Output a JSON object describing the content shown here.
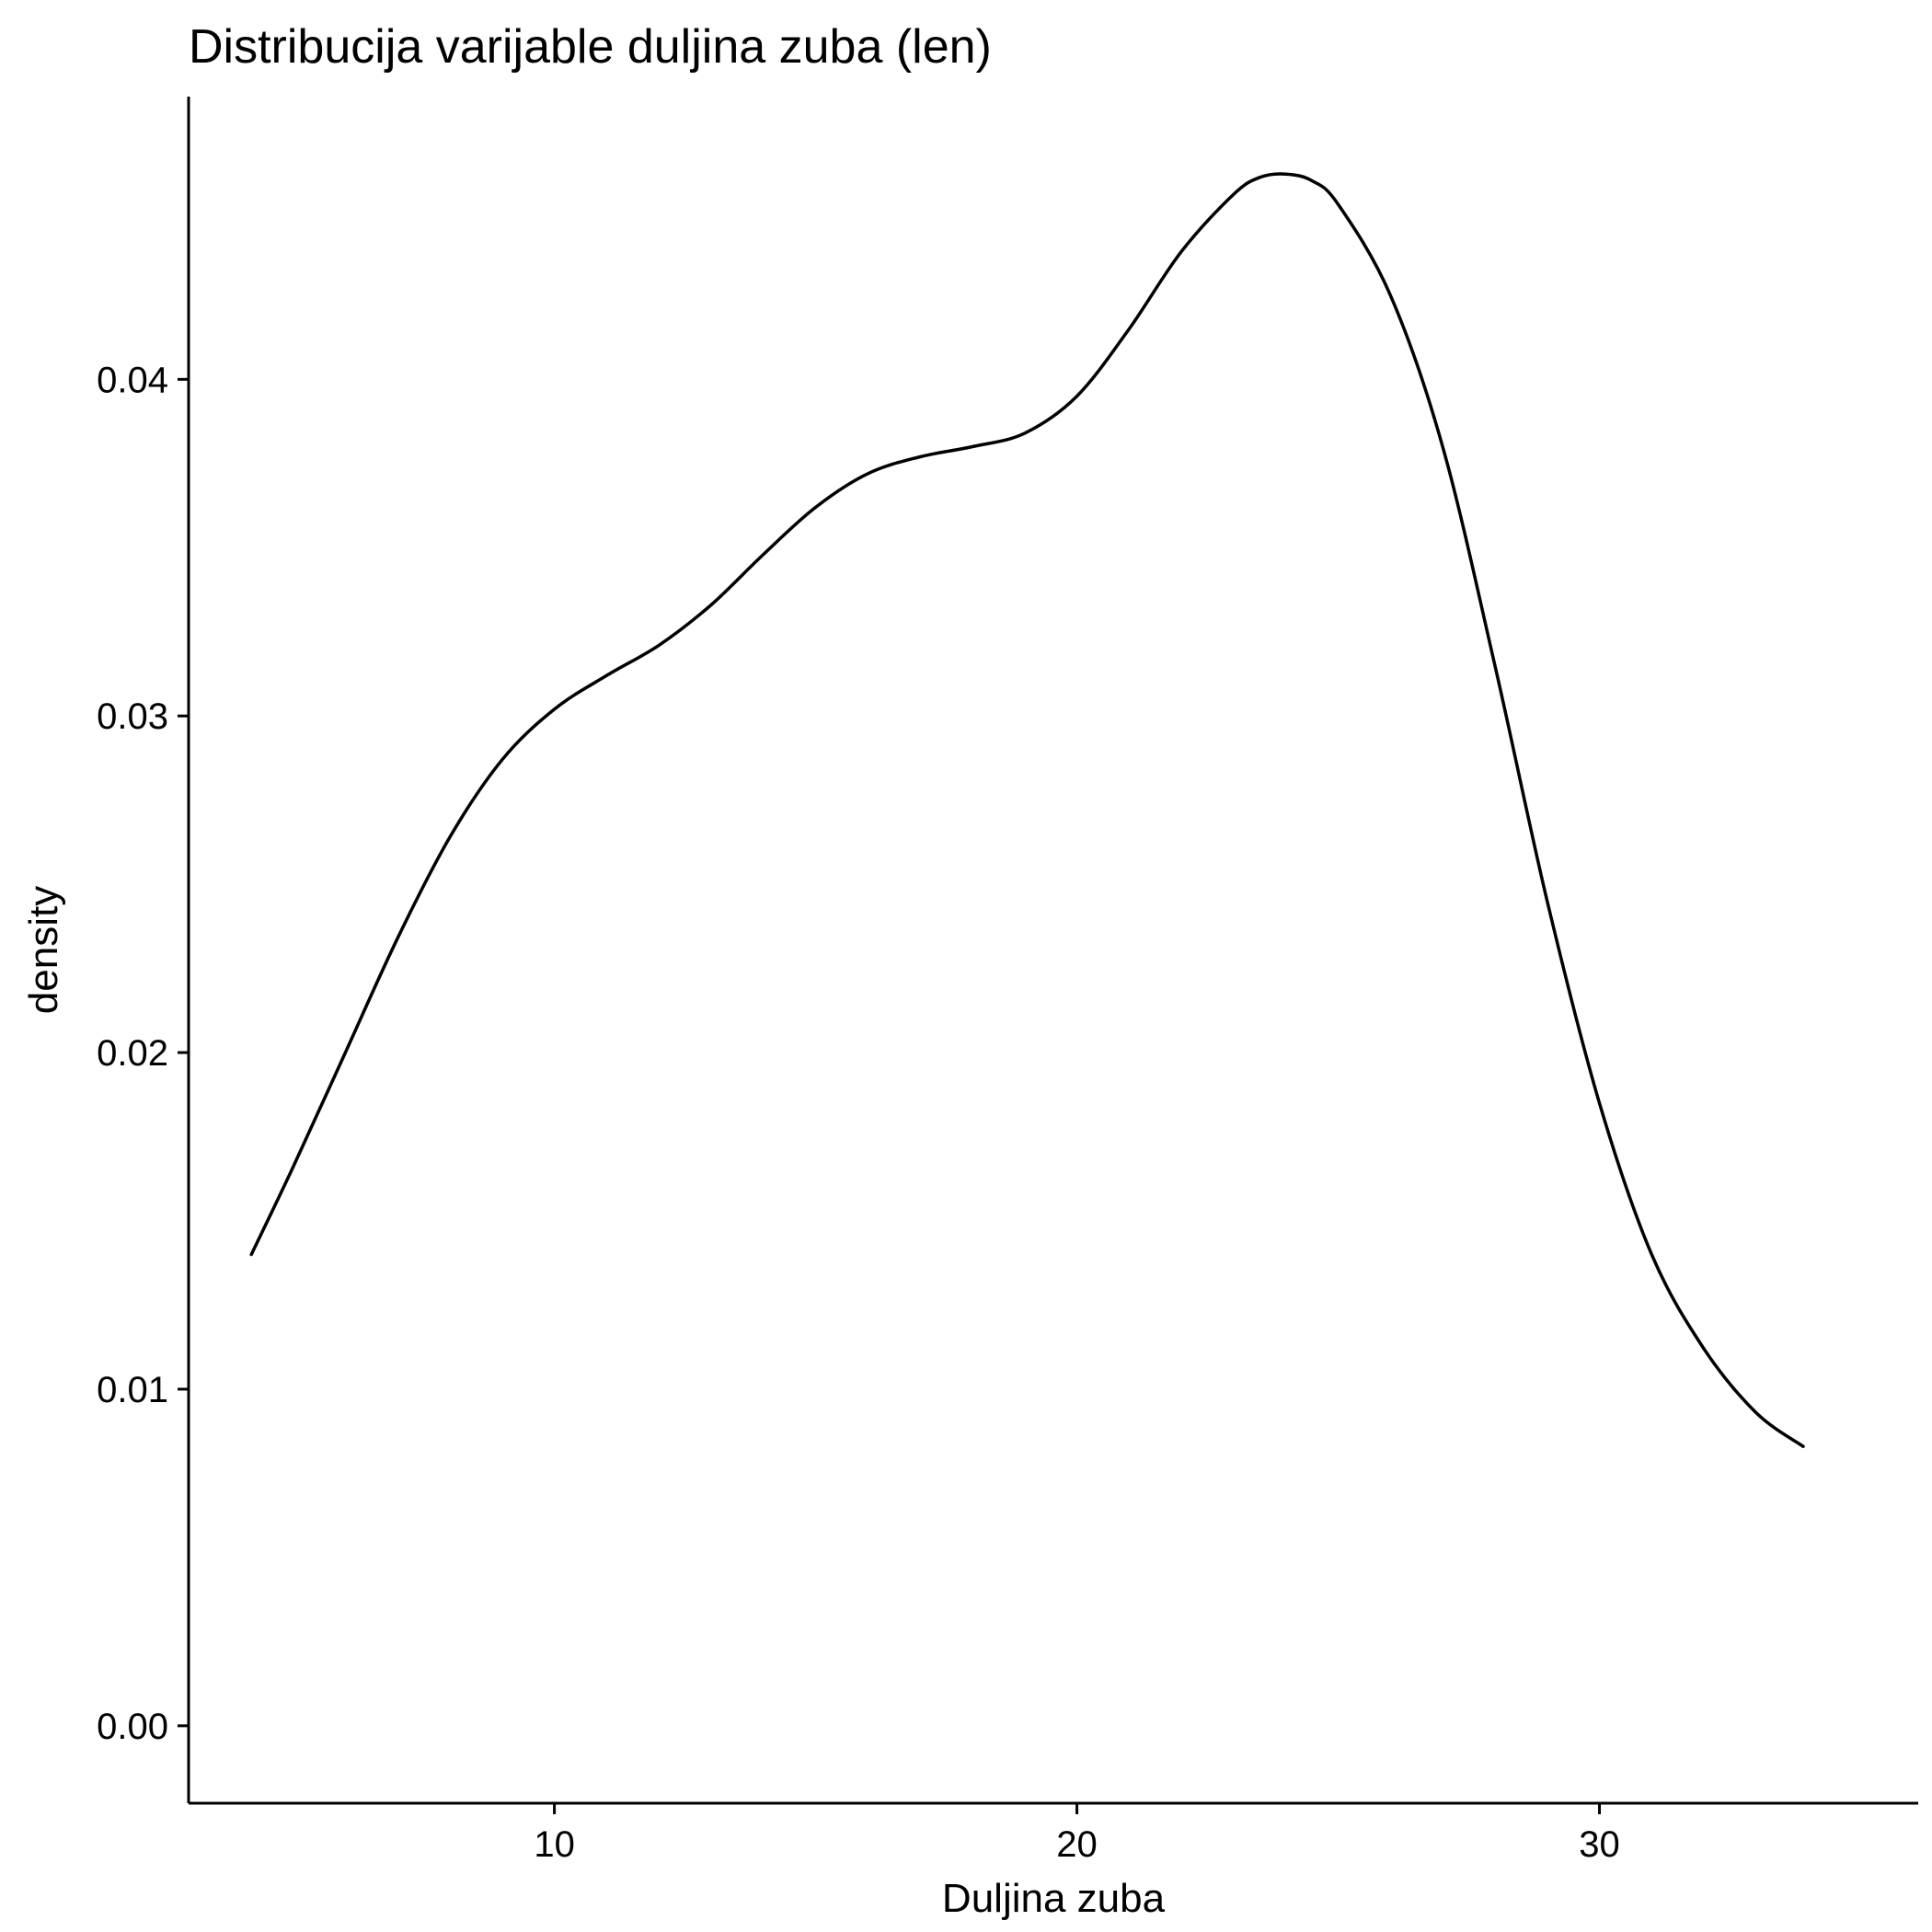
{
  "chart_data": {
    "type": "line",
    "title": "Distribucija varijable duljina zuba (len)",
    "xlabel": "Duljina zuba",
    "ylabel": "density",
    "xlim": [
      3.0,
      36.1
    ],
    "ylim": [
      -0.0023,
      0.0484
    ],
    "x_ticks": [
      10,
      20,
      30
    ],
    "x_tick_labels": [
      "10",
      "20",
      "30"
    ],
    "y_ticks": [
      0.0,
      0.01,
      0.02,
      0.03,
      0.04
    ],
    "y_tick_labels": [
      "0.00",
      "0.01",
      "0.02",
      "0.03",
      "0.04"
    ],
    "grid": false,
    "legend": "none",
    "series": [
      {
        "color": "#000000",
        "x": [
          4.2,
          5.0,
          6.0,
          7.0,
          8.0,
          9.0,
          10.0,
          11.0,
          12.0,
          13.0,
          14.0,
          15.0,
          16.0,
          17.0,
          18.0,
          19.0,
          20.0,
          21.0,
          22.0,
          23.0,
          23.5,
          24.0,
          24.5,
          25.0,
          26.0,
          27.0,
          28.0,
          29.0,
          30.0,
          31.0,
          32.0,
          33.0,
          33.9
        ],
        "y": [
          0.014,
          0.0166,
          0.02,
          0.0234,
          0.0264,
          0.0287,
          0.0302,
          0.0312,
          0.0321,
          0.0333,
          0.0348,
          0.0362,
          0.0372,
          0.0377,
          0.038,
          0.0384,
          0.0395,
          0.0415,
          0.0438,
          0.0455,
          0.046,
          0.0461,
          0.0459,
          0.0452,
          0.0425,
          0.038,
          0.0315,
          0.0245,
          0.0185,
          0.014,
          0.0112,
          0.0093,
          0.0083
        ]
      }
    ]
  }
}
